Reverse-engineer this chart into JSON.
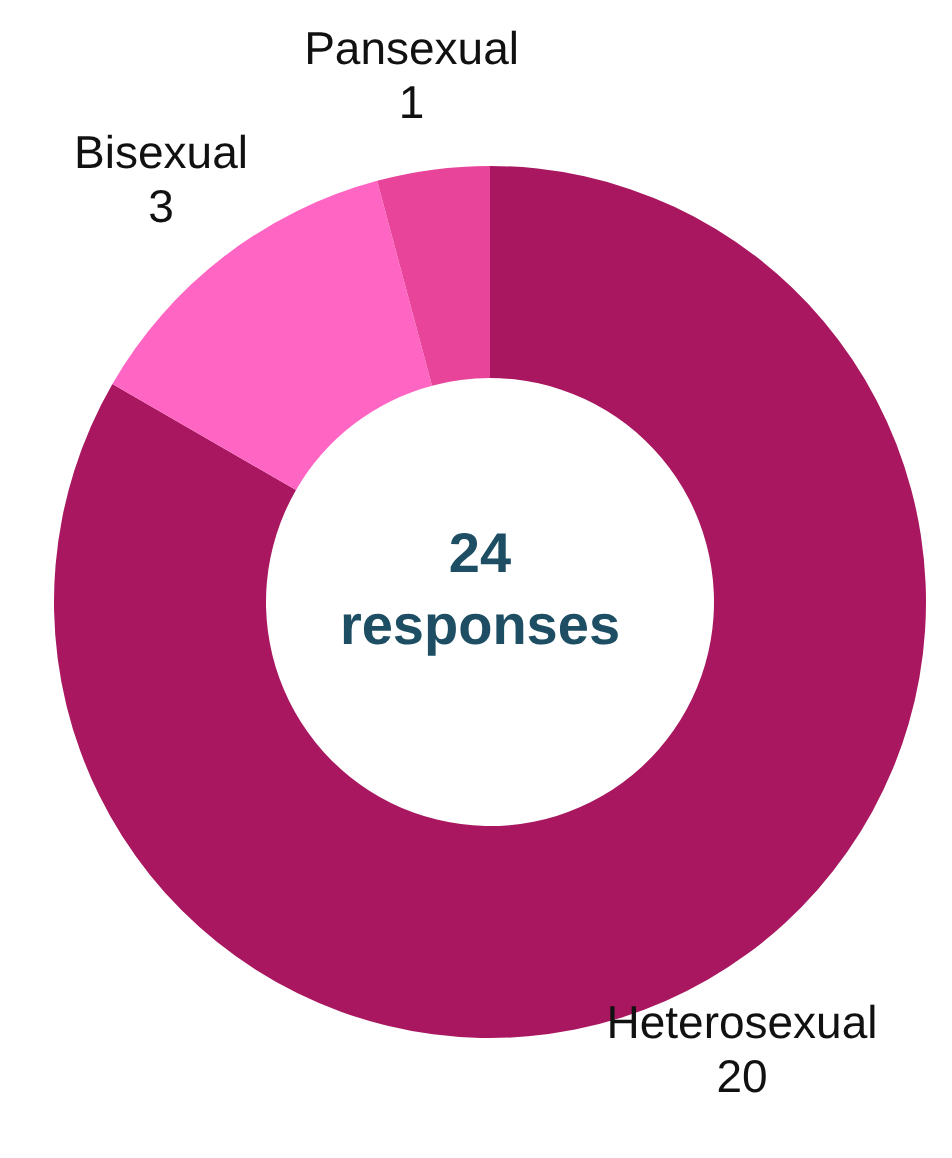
{
  "chart_data": {
    "type": "donut",
    "categories": [
      "Heterosexual",
      "Bisexual",
      "Pansexual"
    ],
    "values": [
      20,
      3,
      1
    ],
    "colors": [
      "#a8175f",
      "#ff66c4",
      "#e8449a"
    ],
    "data_labels": true,
    "annotations": [
      "24 responses"
    ]
  }
}
